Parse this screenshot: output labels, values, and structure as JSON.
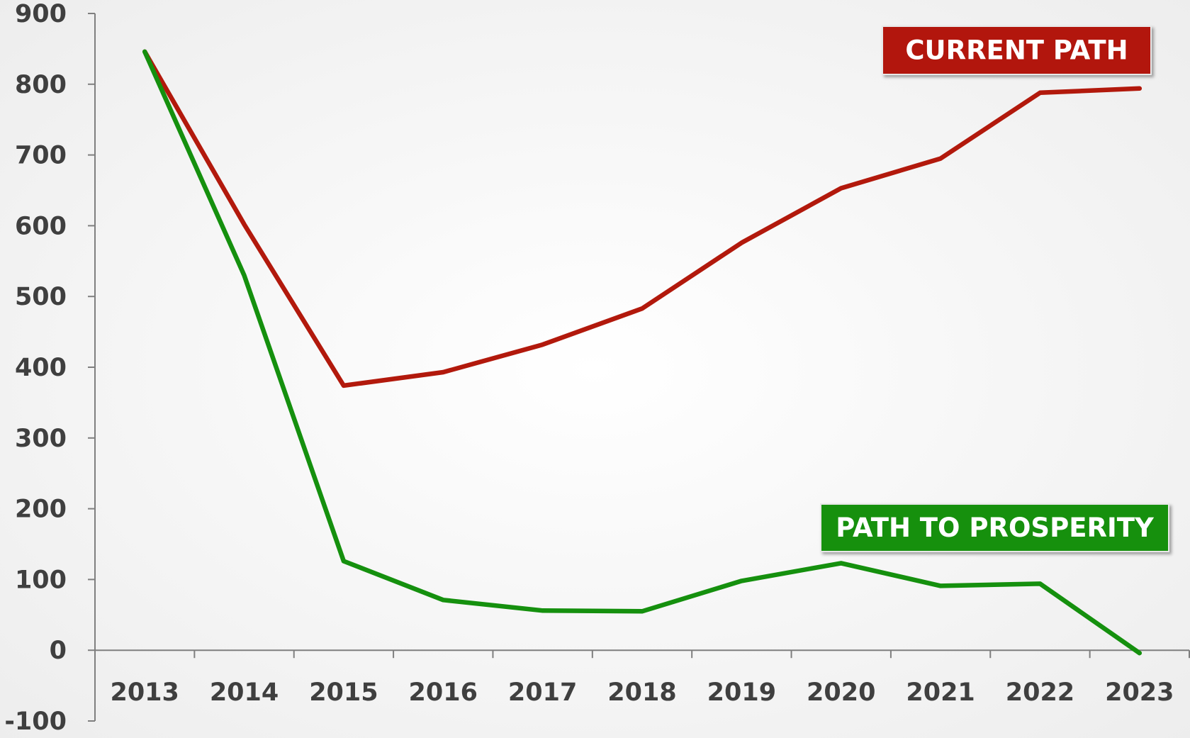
{
  "chart_data": {
    "type": "line",
    "categories": [
      "2013",
      "2014",
      "2015",
      "2016",
      "2017",
      "2018",
      "2019",
      "2020",
      "2021",
      "2022",
      "2023"
    ],
    "series": [
      {
        "name": "CURRENT PATH",
        "color": "#b2190c",
        "values": [
          846,
          602,
          374,
          393,
          432,
          483,
          576,
          653,
          695,
          788,
          794
        ]
      },
      {
        "name": "PATH TO PROSPERITY",
        "color": "#15900e",
        "values": [
          846,
          530,
          126,
          71,
          56,
          55,
          98,
          123,
          91,
          94,
          -4
        ]
      }
    ],
    "ylim": [
      -100,
      900
    ],
    "yticks": [
      -100,
      0,
      100,
      200,
      300,
      400,
      500,
      600,
      700,
      800,
      900
    ],
    "grid": false
  }
}
